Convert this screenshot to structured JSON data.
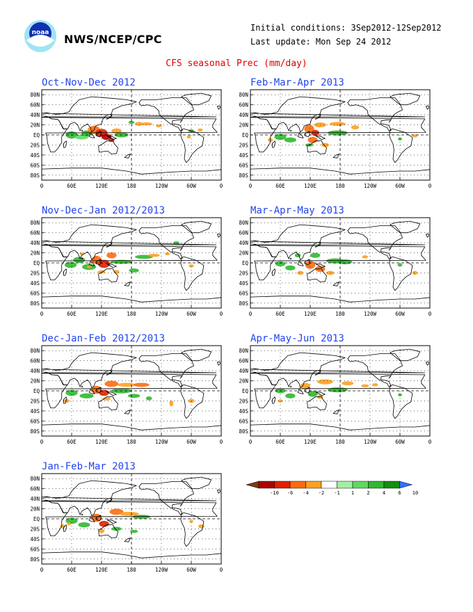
{
  "header": {
    "organization": "NWS/NCEP/CPC",
    "initial_conditions": "Initial conditions: 3Sep2012-12Sep2012",
    "last_update": "Last update: Mon Sep 24 2012",
    "title": "CFS seasonal Prec (mm/day)"
  },
  "logo": {
    "text": "noaa"
  },
  "axes": {
    "lat_labels": [
      "80N",
      "60N",
      "40N",
      "20N",
      "EQ",
      "20S",
      "40S",
      "60S",
      "80S"
    ],
    "lon_labels": [
      "0",
      "60E",
      "120E",
      "180",
      "120W",
      "60W",
      "0"
    ]
  },
  "panels": [
    {
      "id": "ond",
      "title": "Oct-Nov-Dec 2012"
    },
    {
      "id": "ndj",
      "title": "Nov-Dec-Jan 2012/2013"
    },
    {
      "id": "djf",
      "title": "Dec-Jan-Feb 2012/2013"
    },
    {
      "id": "jfm",
      "title": "Jan-Feb-Mar 2013"
    },
    {
      "id": "fma",
      "title": "Feb-Mar-Apr 2013"
    },
    {
      "id": "mam",
      "title": "Mar-Apr-May 2013"
    },
    {
      "id": "amj",
      "title": "Apr-May-Jun 2013"
    }
  ],
  "colorbar": {
    "ticks": [
      "-10",
      "-6",
      "-4",
      "-2",
      "-1",
      "1",
      "2",
      "4",
      "6",
      "10"
    ],
    "colors": [
      "#7a3a10",
      "#b00000",
      "#e02000",
      "#ff6a10",
      "#ffa020",
      "#ffffff",
      "#a0f0a0",
      "#60d860",
      "#30b830",
      "#109010",
      "#3070ff"
    ]
  }
}
